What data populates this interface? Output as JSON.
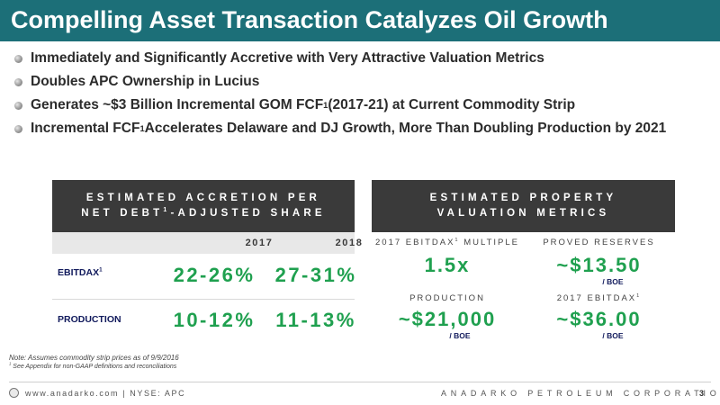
{
  "title": "Compelling Asset Transaction Catalyzes Oil Growth",
  "bullets": [
    {
      "text": "Immediately and Significantly Accretive with Very Attractive Valuation Metrics",
      "sup": "",
      "tail": ""
    },
    {
      "text": "Doubles APC Ownership in Lucius",
      "sup": "",
      "tail": ""
    },
    {
      "text": "Generates ~$3 Billion Incremental GOM FCF",
      "sup": "1",
      "tail": " (2017-21) at Current Commodity Strip"
    },
    {
      "text": "Incremental FCF",
      "sup": "1",
      "tail": " Accelerates Delaware and DJ Growth, More Than Doubling Production by 2021"
    }
  ],
  "accretion": {
    "header_line1": "ESTIMATED ACCRETION PER",
    "header_line2_a": "NET DEBT",
    "header_line2_sup": "1",
    "header_line2_b": "-ADJUSTED SHARE",
    "years": [
      "2017",
      "2018"
    ],
    "rows": [
      {
        "label": "EBITDAX",
        "sup": "1",
        "values": [
          "22-26%",
          "27-31%"
        ]
      },
      {
        "label": "PRODUCTION",
        "sup": "",
        "values": [
          "10-12%",
          "11-13%"
        ]
      }
    ]
  },
  "valuation": {
    "header_line1": "ESTIMATED PROPERTY",
    "header_line2": "VALUATION METRICS",
    "metrics": [
      {
        "label": "2017 EBITDAX",
        "sup": "1",
        "label_tail": " MULTIPLE",
        "value": "1.5x",
        "unit": ""
      },
      {
        "label": "PROVED RESERVES",
        "sup": "",
        "label_tail": "",
        "value": "~$13.50",
        "unit": "/ BOE"
      },
      {
        "label": "PRODUCTION",
        "sup": "",
        "label_tail": "",
        "value": "~$21,000",
        "unit": "/ BOE"
      },
      {
        "label": "2017 EBITDAX",
        "sup": "1",
        "label_tail": "",
        "value": "~$36.00",
        "unit": "/ BOE"
      }
    ]
  },
  "notes": {
    "note1": "Note: Assumes commodity strip prices as of 9/9/2016",
    "note2_sup": "1",
    "note2": " See Appendix for non-GAAP definitions and reconciliations"
  },
  "footer": {
    "left": "www.anadarko.com | NYSE: APC",
    "right": "ANADARKO PETROLEUM CORPORATION",
    "page": "3"
  },
  "colors": {
    "title_bar": "#1c6f78",
    "panel_header": "#3a3a3a",
    "value_green": "#1fa04f",
    "label_navy": "#111a5c"
  }
}
